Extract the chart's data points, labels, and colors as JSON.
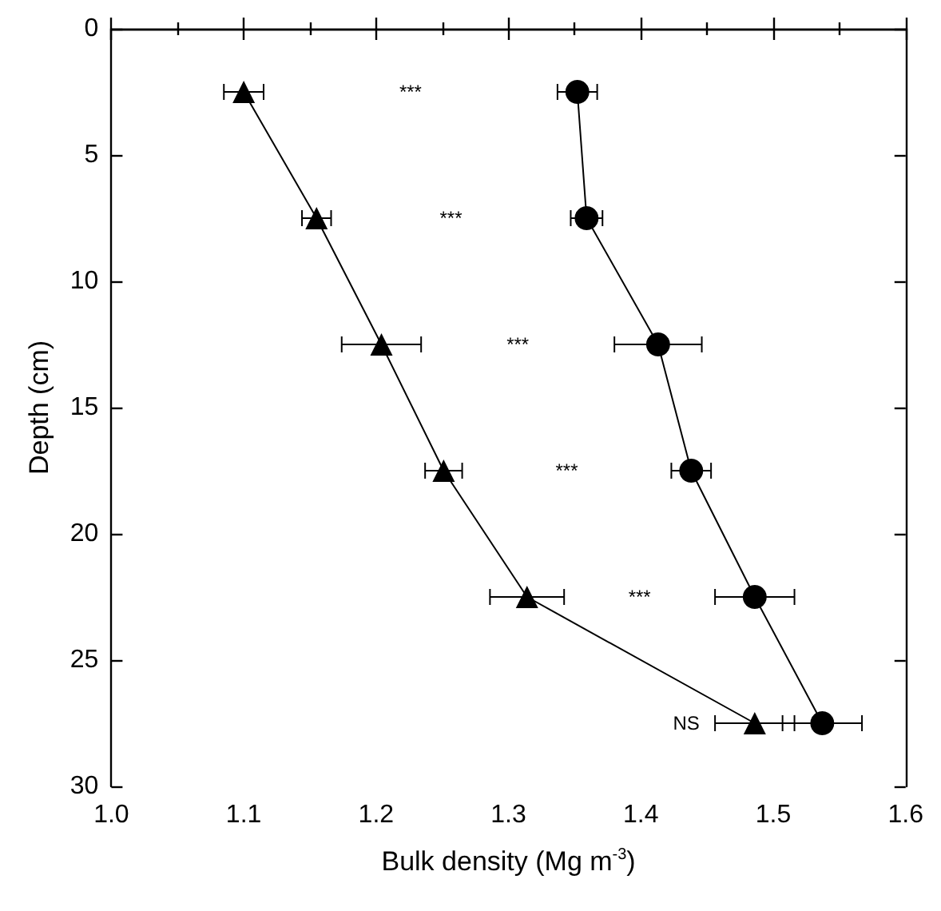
{
  "chart_data": {
    "type": "line",
    "xlabel": "Bulk density (Mg m$^{-3}$)",
    "ylabel": "Depth (cm)",
    "xlim": [
      1.0,
      1.6
    ],
    "xticks": [
      {
        "value": 1.0,
        "label": "1.0"
      },
      {
        "value": 1.1,
        "label": "1.1"
      },
      {
        "value": 1.2,
        "label": "1.2"
      },
      {
        "value": 1.3,
        "label": "1.3"
      },
      {
        "value": 1.4,
        "label": "1.4"
      },
      {
        "value": 1.5,
        "label": "1.5"
      },
      {
        "value": 1.6,
        "label": "1.6"
      }
    ],
    "ylim": [
      30,
      0
    ],
    "yticks": [
      0,
      5,
      10,
      15,
      20,
      25,
      30
    ],
    "grid": false,
    "line_style": "solid",
    "series": [
      {
        "color": "#000000",
        "marker": "triangle",
        "x": [
          1.1,
          1.155,
          1.204,
          1.251,
          1.314,
          1.486
        ],
        "values": [
          2.5,
          7.5,
          12.5,
          17.5,
          22.5,
          27.5
        ],
        "xerrors": [
          0.015,
          0.011,
          0.03,
          0.014,
          0.028,
          0.03
        ]
      },
      {
        "color": "#000000",
        "marker": "circle",
        "x": [
          1.352,
          1.359,
          1.413,
          1.438,
          1.486,
          1.537
        ],
        "values": [
          2.5,
          7.5,
          12.5,
          17.5,
          22.5,
          27.5
        ],
        "xerrors": [
          0.015,
          0.012,
          0.033,
          0.015,
          0.03,
          0.03
        ]
      }
    ],
    "annotations": [
      "***",
      "***",
      "***",
      "***",
      "***",
      "NS"
    ]
  }
}
